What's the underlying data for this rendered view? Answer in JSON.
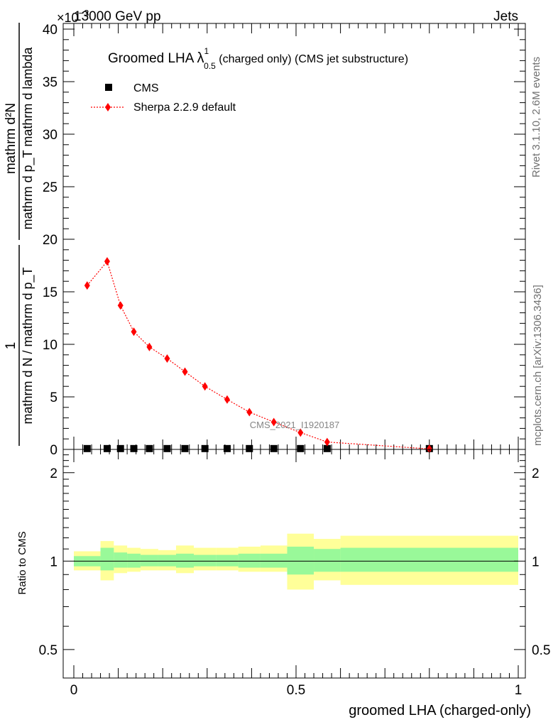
{
  "header": {
    "left": "13000 GeV pp",
    "right": "Jets",
    "exponent": "×10",
    "exponent_power": "−3"
  },
  "side_labels": {
    "rivet": "Rivet 3.1.10,  2.6M events",
    "mcplots": "mcplots.cern.ch [arXiv:1306.3436]"
  },
  "plot_title": {
    "main": "Groomed LHA",
    "lambda": "λ",
    "sup": "1",
    "sub": "0.5",
    "rest": " (charged only) (CMS jet substructure)"
  },
  "watermark": "CMS_2021_I1920187",
  "y_axis_label": {
    "numerator": "mathrm d²N",
    "denominator": "mathrm d p_T mathrm d lambda",
    "prefix_num": "1",
    "prefix_den": "mathrm d N / mathrm d p_T"
  },
  "ratio_ylabel": "Ratio to CMS",
  "x_axis_label": "groomed LHA (charged-only)",
  "colors": {
    "sherpa": "#ff0000",
    "band_inner": "#99f999",
    "band_outer": "#ffff99",
    "data": "#000000"
  },
  "chart_data": [
    {
      "type": "scatter",
      "title": "Groomed LHA λ^1_0.5 (charged only) (CMS jet substructure)",
      "xlabel": "groomed LHA (charged-only)",
      "ylabel": "1/(mathrm d N / mathrm d p_T) mathrm d²N/(mathrm d p_T mathrm d lambda)",
      "xlim": [
        0,
        1
      ],
      "ylim": [
        0,
        40
      ],
      "y_multiplier": "×10^-3",
      "x_ticks": [
        "0",
        "0.5",
        "1"
      ],
      "y_ticks": [
        "0",
        "5",
        "10",
        "15",
        "20",
        "25",
        "30",
        "35",
        "40"
      ],
      "legend_position": "top-left",
      "series": [
        {
          "name": "CMS",
          "marker": "square",
          "color": "#000000",
          "x": [
            0.03,
            0.075,
            0.105,
            0.135,
            0.17,
            0.21,
            0.25,
            0.295,
            0.345,
            0.395,
            0.45,
            0.51,
            0.57,
            0.8
          ],
          "y": [
            0.08,
            0.08,
            0.08,
            0.08,
            0.08,
            0.08,
            0.08,
            0.08,
            0.08,
            0.08,
            0.08,
            0.08,
            0.08,
            0.08
          ]
        },
        {
          "name": "Sherpa 2.2.9 default",
          "marker": "diamond",
          "line": "dotted",
          "color": "#ff0000",
          "x": [
            0.03,
            0.075,
            0.105,
            0.135,
            0.17,
            0.21,
            0.25,
            0.295,
            0.345,
            0.395,
            0.45,
            0.51,
            0.57,
            0.8
          ],
          "y": [
            15.6,
            17.9,
            13.7,
            11.2,
            9.75,
            8.65,
            7.4,
            6.0,
            4.75,
            3.55,
            2.6,
            1.6,
            0.7,
            0.05
          ]
        }
      ]
    },
    {
      "type": "area",
      "ylabel": "Ratio to CMS",
      "xlim": [
        0,
        1
      ],
      "ylim": [
        0.4,
        2.4
      ],
      "y_scale": "log",
      "y_ticks": [
        "0.5",
        "1",
        "2"
      ],
      "reference_line": 1,
      "bins": [
        {
          "x0": 0.0,
          "x1": 0.06,
          "inner": [
            0.96,
            1.04
          ],
          "outer": [
            0.93,
            1.08
          ]
        },
        {
          "x0": 0.06,
          "x1": 0.09,
          "inner": [
            0.93,
            1.11
          ],
          "outer": [
            0.86,
            1.17
          ]
        },
        {
          "x0": 0.09,
          "x1": 0.12,
          "inner": [
            0.95,
            1.07
          ],
          "outer": [
            0.91,
            1.13
          ]
        },
        {
          "x0": 0.12,
          "x1": 0.15,
          "inner": [
            0.95,
            1.06
          ],
          "outer": [
            0.92,
            1.11
          ]
        },
        {
          "x0": 0.15,
          "x1": 0.19,
          "inner": [
            0.96,
            1.05
          ],
          "outer": [
            0.93,
            1.1
          ]
        },
        {
          "x0": 0.19,
          "x1": 0.23,
          "inner": [
            0.96,
            1.05
          ],
          "outer": [
            0.93,
            1.09
          ]
        },
        {
          "x0": 0.23,
          "x1": 0.27,
          "inner": [
            0.95,
            1.06
          ],
          "outer": [
            0.91,
            1.13
          ]
        },
        {
          "x0": 0.27,
          "x1": 0.32,
          "inner": [
            0.96,
            1.05
          ],
          "outer": [
            0.93,
            1.11
          ]
        },
        {
          "x0": 0.32,
          "x1": 0.37,
          "inner": [
            0.96,
            1.05
          ],
          "outer": [
            0.93,
            1.11
          ]
        },
        {
          "x0": 0.37,
          "x1": 0.42,
          "inner": [
            0.95,
            1.06
          ],
          "outer": [
            0.92,
            1.12
          ]
        },
        {
          "x0": 0.42,
          "x1": 0.48,
          "inner": [
            0.95,
            1.06
          ],
          "outer": [
            0.92,
            1.13
          ]
        },
        {
          "x0": 0.48,
          "x1": 0.54,
          "inner": [
            0.9,
            1.12
          ],
          "outer": [
            0.8,
            1.24
          ]
        },
        {
          "x0": 0.54,
          "x1": 0.6,
          "inner": [
            0.92,
            1.1
          ],
          "outer": [
            0.86,
            1.19
          ]
        },
        {
          "x0": 0.6,
          "x1": 1.0,
          "inner": [
            0.92,
            1.11
          ],
          "outer": [
            0.83,
            1.22
          ]
        }
      ]
    }
  ]
}
